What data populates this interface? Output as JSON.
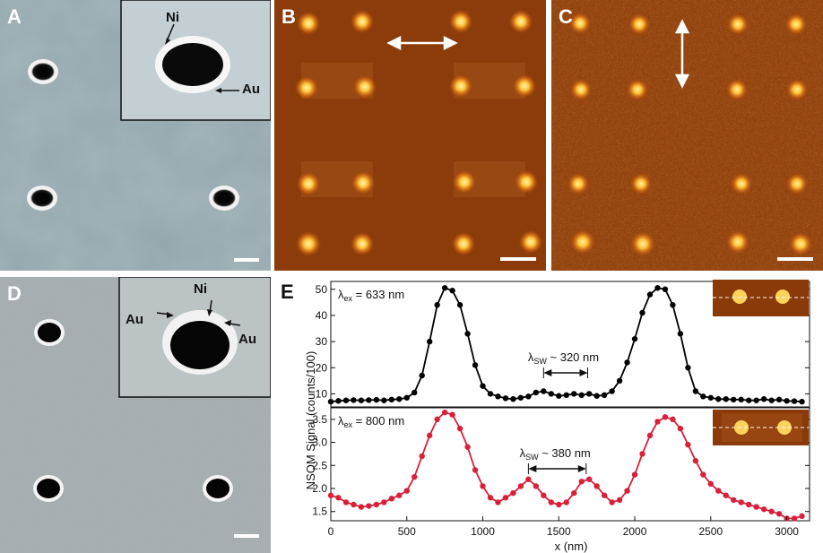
{
  "panels": {
    "a": {
      "label": "A",
      "inset_labels": {
        "ni": "Ni",
        "au": "Au"
      }
    },
    "b": {
      "label": "B"
    },
    "c": {
      "label": "C"
    },
    "d": {
      "label": "D",
      "inset_labels": {
        "ni": "Ni",
        "au_left": "Au",
        "au_right": "Au"
      }
    },
    "e": {
      "label": "E"
    }
  },
  "colors": {
    "sem_bg": "#8ea3a9",
    "nsom_bg": "#8a3a08",
    "spot": "#ffe27a",
    "series_633": "#000000",
    "series_800": "#d8203a"
  },
  "chart_data": {
    "type": "line",
    "xlabel": "x (nm)",
    "ylabel": "NSOM Signal (counts/100)",
    "xlim": [
      0,
      3150
    ],
    "x_ticks": [
      "0",
      "500",
      "1000",
      "1500",
      "2000",
      "2500",
      "3000"
    ],
    "subplots": [
      {
        "label_prefix": "λex",
        "label_value": "= 633 nm",
        "sw_prefix": "λSW",
        "sw_value": "~ 320 nm",
        "color": "#000000",
        "ylim": [
          5,
          53
        ],
        "y_ticks": [
          "10",
          "20",
          "30",
          "40",
          "50"
        ],
        "x": [
          0,
          50,
          100,
          150,
          200,
          250,
          300,
          350,
          400,
          450,
          500,
          550,
          600,
          650,
          700,
          750,
          800,
          850,
          900,
          950,
          1000,
          1050,
          1100,
          1150,
          1200,
          1250,
          1300,
          1350,
          1400,
          1450,
          1500,
          1550,
          1600,
          1650,
          1700,
          1750,
          1800,
          1850,
          1900,
          1950,
          2000,
          2050,
          2100,
          2150,
          2200,
          2250,
          2300,
          2350,
          2400,
          2450,
          2500,
          2550,
          2600,
          2650,
          2700,
          2750,
          2800,
          2850,
          2900,
          2950,
          3000,
          3050,
          3100
        ],
        "values": [
          7,
          7.3,
          7.5,
          7.6,
          7.5,
          7.6,
          7.7,
          7.5,
          7.8,
          8,
          8.5,
          10.5,
          17,
          30,
          44,
          50.5,
          49.5,
          44,
          33,
          21,
          13,
          10,
          9,
          8.3,
          8,
          8.5,
          9,
          10.5,
          11,
          10,
          9.2,
          9.5,
          10,
          9.5,
          10,
          9.2,
          9.5,
          11,
          15,
          22,
          31,
          41,
          48,
          50.5,
          50,
          44,
          33,
          20,
          11,
          9,
          8.5,
          8,
          8,
          7.8,
          7.8,
          7.5,
          7.5,
          8,
          7.5,
          7.8,
          7.3,
          7.2,
          7
        ]
      },
      {
        "label_prefix": "λex",
        "label_value": "= 800 nm",
        "sw_prefix": "λSW",
        "sw_value": "~ 380 nm",
        "color": "#d8203a",
        "ylim": [
          1.3,
          3.75
        ],
        "y_ticks": [
          "1.5",
          "2.0",
          "2.5",
          "3.0",
          "3.5"
        ],
        "x": [
          0,
          50,
          100,
          150,
          200,
          250,
          300,
          350,
          400,
          450,
          500,
          550,
          600,
          650,
          700,
          750,
          800,
          850,
          900,
          950,
          1000,
          1050,
          1100,
          1150,
          1200,
          1250,
          1300,
          1350,
          1400,
          1450,
          1500,
          1550,
          1600,
          1650,
          1700,
          1750,
          1800,
          1850,
          1900,
          1950,
          2000,
          2050,
          2100,
          2150,
          2200,
          2250,
          2300,
          2350,
          2400,
          2450,
          2500,
          2550,
          2600,
          2650,
          2700,
          2750,
          2800,
          2850,
          2900,
          2950,
          3000,
          3050,
          3100
        ],
        "values": [
          1.85,
          1.8,
          1.7,
          1.65,
          1.6,
          1.62,
          1.65,
          1.7,
          1.78,
          1.85,
          1.95,
          2.25,
          2.7,
          3.15,
          3.5,
          3.65,
          3.6,
          3.3,
          2.9,
          2.4,
          2.05,
          1.8,
          1.7,
          1.8,
          1.9,
          2.05,
          2.2,
          2.05,
          1.85,
          1.7,
          1.65,
          1.7,
          1.9,
          2.15,
          2.2,
          2.05,
          1.85,
          1.7,
          1.75,
          1.95,
          2.3,
          2.75,
          3.15,
          3.45,
          3.55,
          3.5,
          3.3,
          2.95,
          2.6,
          2.3,
          2.1,
          1.95,
          1.85,
          1.75,
          1.7,
          1.65,
          1.6,
          1.55,
          1.5,
          1.45,
          1.35,
          1.35,
          1.4
        ]
      }
    ]
  }
}
